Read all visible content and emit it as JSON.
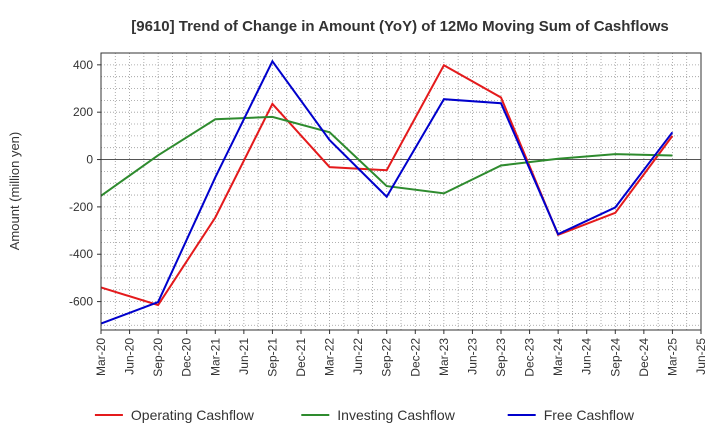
{
  "chart_data": {
    "type": "line",
    "title": "[9610]  Trend of Change in Amount (YoY) of 12Mo Moving Sum of Cashflows",
    "xlabel": "",
    "ylabel": "Amount (million yen)",
    "ylim": [
      -720,
      450
    ],
    "yticks": [
      400,
      200,
      0,
      -200,
      -400,
      -600
    ],
    "ytick_labels": [
      "400",
      "200",
      "0",
      "-200",
      "-400",
      "-600"
    ],
    "categories": [
      "Mar-20",
      "Jun-20",
      "Sep-20",
      "Dec-20",
      "Mar-21",
      "Jun-21",
      "Sep-21",
      "Dec-21",
      "Mar-22",
      "Jun-22",
      "Sep-22",
      "Dec-22",
      "Mar-23",
      "Jun-23",
      "Sep-23",
      "Dec-23",
      "Mar-24",
      "Jun-24",
      "Sep-24",
      "Dec-24",
      "Mar-25",
      "Jun-25"
    ],
    "grid": true,
    "legend_position": "bottom",
    "series": [
      {
        "name": "Operating Cashflow",
        "color": "#e41a1c",
        "points": [
          [
            0,
            -540
          ],
          [
            2,
            -615
          ],
          [
            4,
            -245
          ],
          [
            6,
            235
          ],
          [
            8,
            -32
          ],
          [
            10,
            -45
          ],
          [
            12,
            398
          ],
          [
            14,
            262
          ],
          [
            16,
            -318
          ],
          [
            18,
            -225
          ],
          [
            20,
            100
          ]
        ]
      },
      {
        "name": "Investing Cashflow",
        "color": "#2e8b2e",
        "points": [
          [
            0,
            -153
          ],
          [
            2,
            18
          ],
          [
            4,
            170
          ],
          [
            6,
            180
          ],
          [
            8,
            115
          ],
          [
            10,
            -112
          ],
          [
            12,
            -143
          ],
          [
            14,
            -25
          ],
          [
            16,
            3
          ],
          [
            18,
            23
          ],
          [
            20,
            17
          ]
        ]
      },
      {
        "name": "Free Cashflow",
        "color": "#0000cc",
        "points": [
          [
            0,
            -693
          ],
          [
            2,
            -602
          ],
          [
            4,
            -75
          ],
          [
            6,
            415
          ],
          [
            8,
            82
          ],
          [
            10,
            -157
          ],
          [
            12,
            255
          ],
          [
            14,
            238
          ],
          [
            16,
            -315
          ],
          [
            18,
            -202
          ],
          [
            20,
            115
          ]
        ]
      }
    ]
  }
}
